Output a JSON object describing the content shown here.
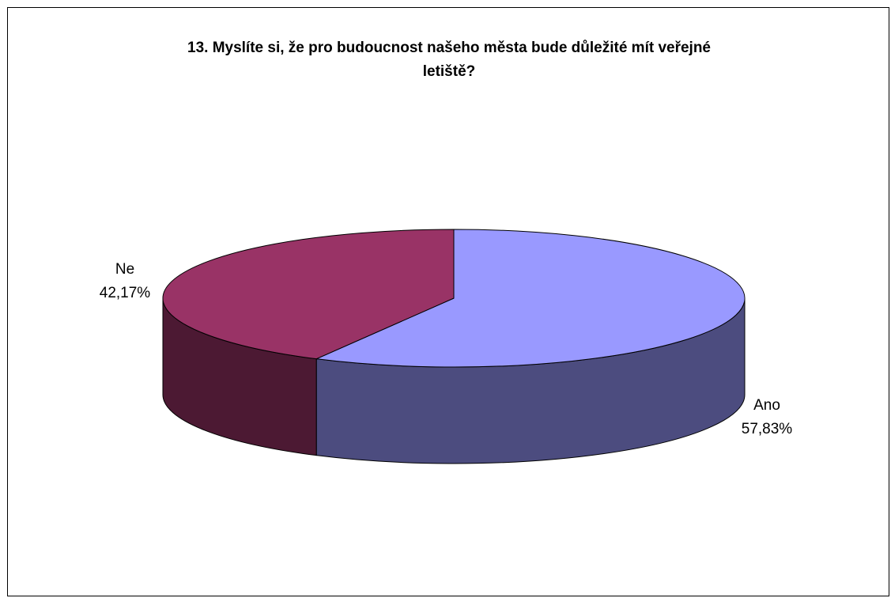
{
  "chart_data": {
    "type": "pie",
    "title": "13. Myslíte si, že pro budoucnost našeho města bude důležité mít veřejné\nletiště?",
    "slices": [
      {
        "label": "Ano",
        "value": 57.83,
        "display": "57,83%",
        "color": "#9999FF",
        "side_color": "#4C4C7F"
      },
      {
        "label": "Ne",
        "value": 42.17,
        "display": "42,17%",
        "color": "#993366",
        "side_color": "#4C1933"
      }
    ],
    "legend": "none",
    "style": "3d"
  }
}
